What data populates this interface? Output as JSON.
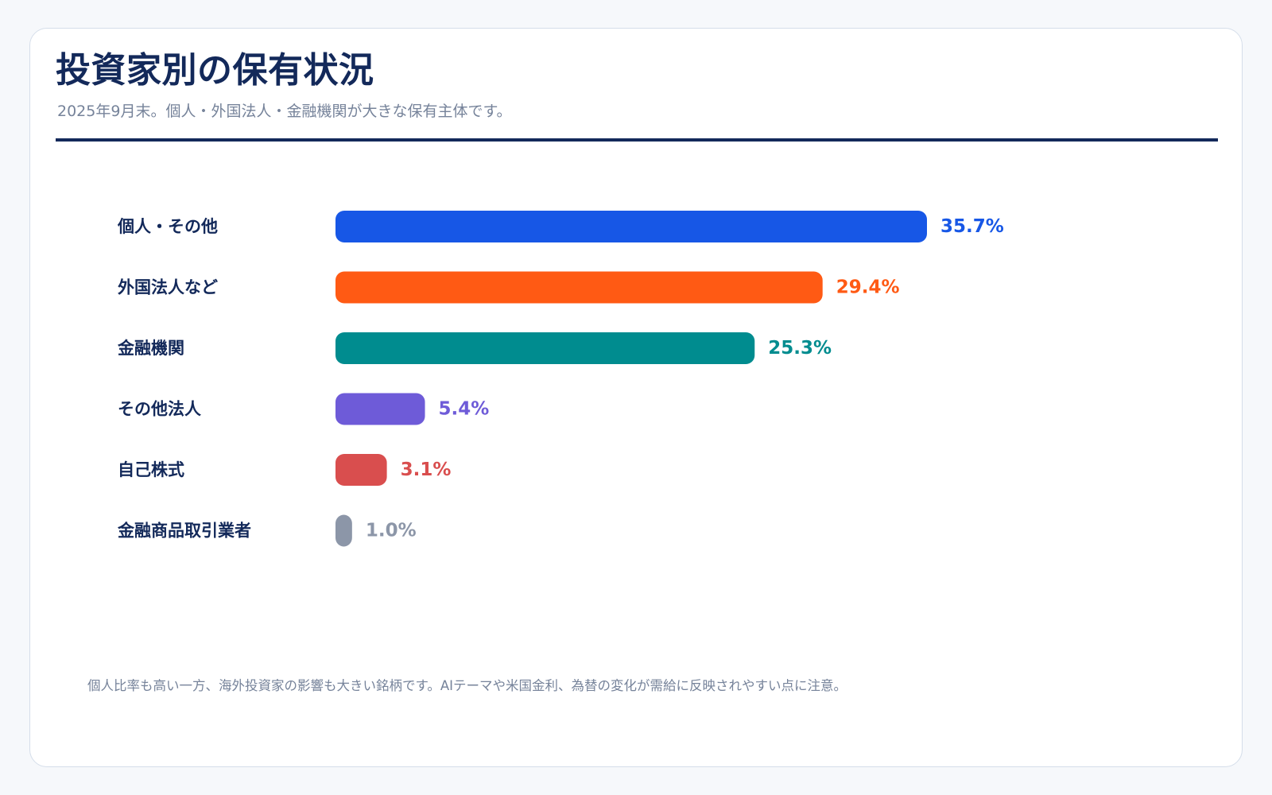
{
  "header": {
    "title": "投資家別の保有状況",
    "subtitle": "2025年9月末。個人・外国法人・金融機関が大きな保有主体です。"
  },
  "footnote": "個人比率も高い一方、海外投資家の影響も大きい銘柄です。AIテーマや米国金利、為替の変化が需給に反映されやすい点に注意。",
  "chart_data": {
    "type": "bar",
    "orientation": "horizontal",
    "title": "投資家別の保有状況",
    "unit": "%",
    "xlim": [
      0,
      35.7
    ],
    "grid": false,
    "legend": "none",
    "categories": [
      "個人・その他",
      "外国法人など",
      "金融機関",
      "その他法人",
      "自己株式",
      "金融商品取引業者"
    ],
    "values": [
      35.7,
      29.4,
      25.3,
      5.4,
      3.1,
      1.0
    ],
    "value_labels": [
      "35.7%",
      "29.4%",
      "25.3%",
      "5.4%",
      "3.1%",
      "1.0%"
    ],
    "colors": [
      "#1757e6",
      "#ff5a14",
      "#008c8f",
      "#6e5bd8",
      "#d94e4e",
      "#8c96a8"
    ]
  }
}
